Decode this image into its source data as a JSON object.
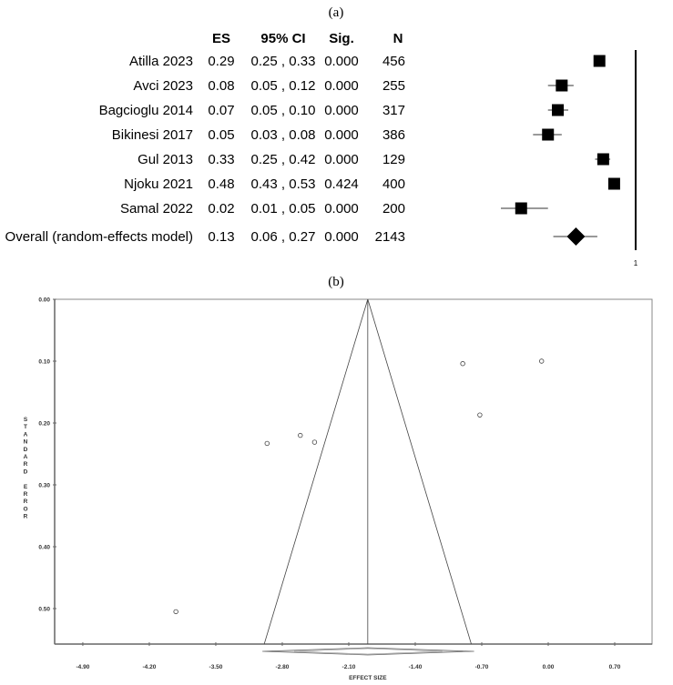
{
  "chart_data": [
    {
      "type": "forest",
      "panel_label": "(a)",
      "columns": [
        "ES",
        "95% CI",
        "Sig.",
        "N"
      ],
      "scale": "log",
      "reference_line": 1,
      "reference_label": "1",
      "rows": [
        {
          "study": "Atilla 2023",
          "es": 0.29,
          "ci_low": 0.25,
          "ci_high": 0.33,
          "ci_text": "0.25 , 0.33",
          "es_text": "0.29",
          "sig": "0.000",
          "n": "456"
        },
        {
          "study": "Avci 2023",
          "es": 0.08,
          "ci_low": 0.05,
          "ci_high": 0.12,
          "ci_text": "0.05 , 0.12",
          "es_text": "0.08",
          "sig": "0.000",
          "n": "255"
        },
        {
          "study": "Bagcioglu 2014",
          "es": 0.07,
          "ci_low": 0.05,
          "ci_high": 0.1,
          "ci_text": "0.05 , 0.10",
          "es_text": "0.07",
          "sig": "0.000",
          "n": "317"
        },
        {
          "study": "Bikinesi 2017",
          "es": 0.05,
          "ci_low": 0.03,
          "ci_high": 0.08,
          "ci_text": "0.03 , 0.08",
          "es_text": "0.05",
          "sig": "0.000",
          "n": "386"
        },
        {
          "study": "Gul 2013",
          "es": 0.33,
          "ci_low": 0.25,
          "ci_high": 0.42,
          "ci_text": "0.25 , 0.42",
          "es_text": "0.33",
          "sig": "0.000",
          "n": "129"
        },
        {
          "study": "Njoku 2021",
          "es": 0.48,
          "ci_low": 0.43,
          "ci_high": 0.53,
          "ci_text": "0.43 , 0.53",
          "es_text": "0.48",
          "sig": "0.424",
          "n": "400"
        },
        {
          "study": "Samal 2022",
          "es": 0.02,
          "ci_low": 0.01,
          "ci_high": 0.05,
          "ci_text": "0.01 , 0.05",
          "es_text": "0.02",
          "sig": "0.000",
          "n": "200"
        }
      ],
      "overall": {
        "study": "Overall (random-effects model)",
        "es": 0.13,
        "ci_low": 0.06,
        "ci_high": 0.27,
        "ci_text": "0.06 , 0.27",
        "es_text": "0.13",
        "sig": "0.000",
        "n": "2143"
      }
    },
    {
      "type": "scatter",
      "subtype": "funnel",
      "panel_label": "(b)",
      "xlabel": "EFFECT SIZE",
      "ylabel": "STANDARD ERROR",
      "xlim": [
        -5.05,
        1.1
      ],
      "ylim": [
        0.557,
        0.0
      ],
      "xticks": [
        -4.9,
        -4.2,
        -3.5,
        -2.8,
        -2.1,
        -1.4,
        -0.7,
        0.0,
        0.7
      ],
      "xtick_labels": [
        "-4.90",
        "-4.20",
        "-3.50",
        "-2.80",
        "-2.10",
        "-1.40",
        "-0.70",
        "0.00",
        "0.70"
      ],
      "yticks": [
        0.0,
        0.1,
        0.2,
        0.3,
        0.4,
        0.5
      ],
      "ytick_labels": [
        "0.00",
        "0.10",
        "0.20",
        "0.30",
        "0.40",
        "0.50"
      ],
      "points": [
        {
          "x": -3.92,
          "y": 0.505
        },
        {
          "x": -2.96,
          "y": 0.233
        },
        {
          "x": -2.61,
          "y": 0.22
        },
        {
          "x": -2.46,
          "y": 0.231
        },
        {
          "x": -0.9,
          "y": 0.104
        },
        {
          "x": -0.07,
          "y": 0.1
        },
        {
          "x": -0.72,
          "y": 0.187
        }
      ],
      "pooled_effect": -1.9,
      "funnel_base": [
        -2.99,
        -0.81
      ],
      "summary_diamond": [
        -2.77,
        -1.9,
        -1.02
      ],
      "grid": false
    }
  ]
}
